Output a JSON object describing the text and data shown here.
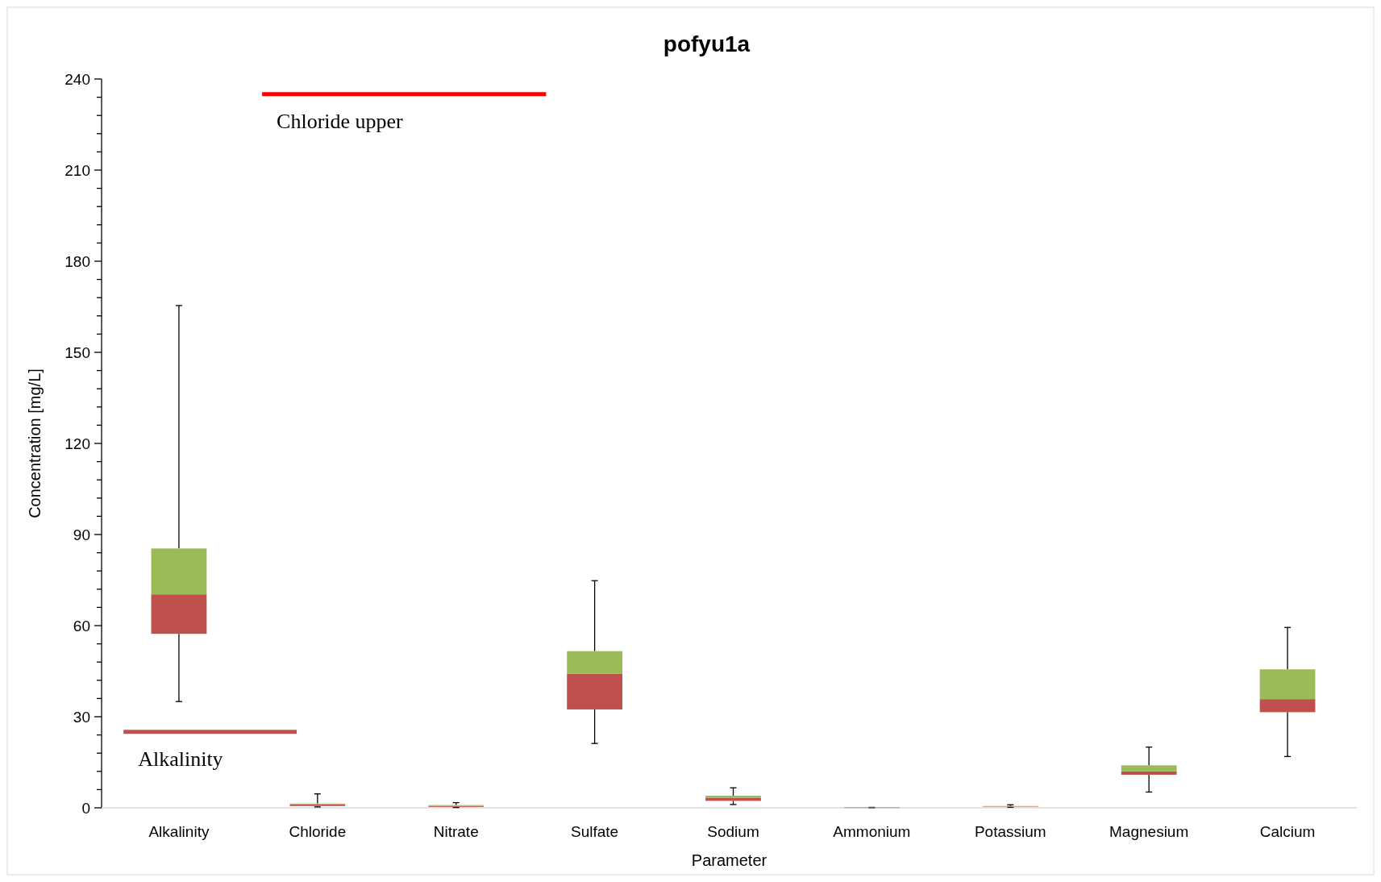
{
  "chart_data": {
    "type": "box",
    "title": "pofyu1a",
    "xlabel": "Parameter",
    "ylabel": "Concentration [mg/L]",
    "categories": [
      "Alkalinity",
      "Chloride",
      "Nitrate",
      "Sulfate",
      "Sodium",
      "Ammonium",
      "Potassium",
      "Magnesium",
      "Calcium"
    ],
    "series": [
      {
        "color": "#9bbb59",
        "colors": [
          "#c0504d",
          "#c0504d",
          "#c0504d",
          "#c0504d",
          "#c0504d",
          "#c0504d",
          "#c0504d",
          "#c0504d",
          "#c0504d"
        ],
        "boxes": [
          {
            "low": 35,
            "q1": 57.3,
            "median": 70.3,
            "q3": 85.4,
            "high": 165.4
          },
          {
            "low": 0.3,
            "q1": 0.6,
            "median": 1.1,
            "q3": 1.4,
            "high": 4.6
          },
          {
            "low": 0.1,
            "q1": 0.3,
            "median": 0.6,
            "q3": 0.9,
            "high": 1.7
          },
          {
            "low": 21.2,
            "q1": 32.4,
            "median": 44.2,
            "q3": 51.6,
            "high": 74.8
          },
          {
            "low": 1.1,
            "q1": 2.3,
            "median": 3.2,
            "q3": 4,
            "high": 6.6
          },
          {
            "low": 0.05,
            "q1": 0.08,
            "median": 0.1,
            "q3": 0.12,
            "high": 0.15
          },
          {
            "low": 0.2,
            "q1": 0.4,
            "median": 0.5,
            "q3": 0.6,
            "high": 1
          },
          {
            "low": 5.2,
            "q1": 10.9,
            "median": 12,
            "q3": 14,
            "high": 20
          },
          {
            "low": 16.9,
            "q1": 31.5,
            "median": 35.8,
            "q3": 45.6,
            "high": 59.4
          }
        ]
      }
    ],
    "ylim": [
      0,
      240
    ],
    "yticks": [
      0,
      {
        "value": 6,
        "label": null
      },
      {
        "value": 12,
        "label": null
      },
      {
        "value": 18,
        "label": null
      },
      {
        "value": 24,
        "label": null
      },
      30,
      {
        "value": 36,
        "label": null
      },
      {
        "value": 42,
        "label": null
      },
      {
        "value": 48,
        "label": null
      },
      {
        "value": 54,
        "label": null
      },
      60,
      {
        "value": 66,
        "label": null
      },
      {
        "value": 72,
        "label": null
      },
      {
        "value": 78,
        "label": null
      },
      {
        "value": 84,
        "label": null
      },
      90,
      {
        "value": 96,
        "label": null
      },
      {
        "value": 102,
        "label": null
      },
      {
        "value": 108,
        "label": null
      },
      {
        "value": 114,
        "label": null
      },
      120,
      {
        "value": 126,
        "label": null
      },
      {
        "value": 132,
        "label": null
      },
      {
        "value": 138,
        "label": null
      },
      {
        "value": 144,
        "label": null
      },
      150,
      {
        "value": 156,
        "label": null
      },
      {
        "value": 162,
        "label": null
      },
      {
        "value": 168,
        "label": null
      },
      {
        "value": 174,
        "label": null
      },
      180,
      {
        "value": 186,
        "label": null
      },
      {
        "value": 192,
        "label": null
      },
      {
        "value": 198,
        "label": null
      },
      {
        "value": 204,
        "label": null
      },
      210,
      {
        "value": 216,
        "label": null
      },
      {
        "value": 222,
        "label": null
      },
      {
        "value": 228,
        "label": null
      },
      {
        "value": 234,
        "label": null
      },
      240
    ],
    "ref_lines": [
      {
        "axis": "y",
        "value": 25,
        "label": "Alkalinity",
        "color": "#c0504d"
      },
      {
        "axis": "y",
        "value": 235,
        "label": "Chloride upper",
        "color": "#ff0000"
      }
    ],
    "grid": false
  }
}
